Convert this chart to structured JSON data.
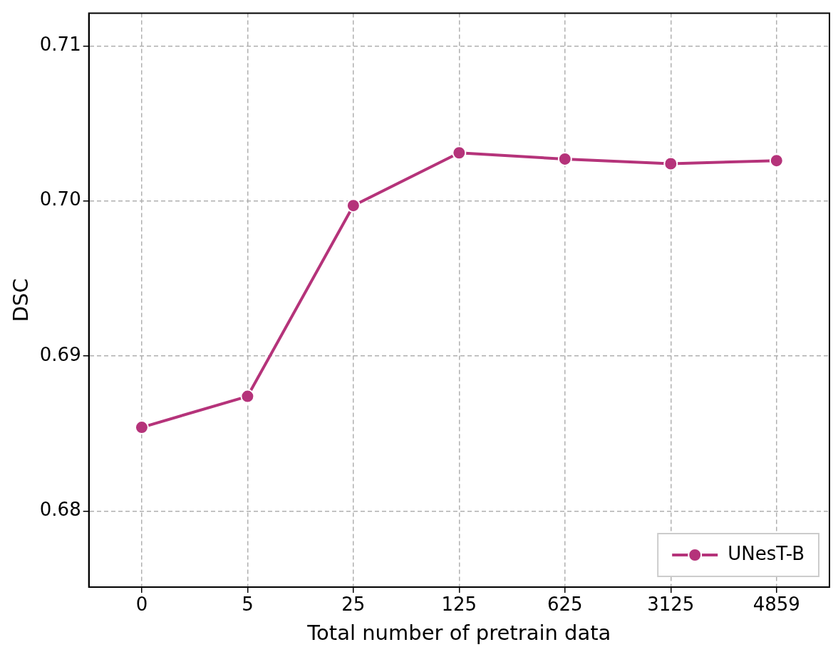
{
  "chart_data": {
    "type": "line",
    "xlabel": "Total number of pretrain data",
    "ylabel": "DSC",
    "categories": [
      "0",
      "5",
      "25",
      "125",
      "625",
      "3125",
      "4859"
    ],
    "series": [
      {
        "name": "UNesT-B",
        "color": "#b5337a",
        "values": [
          0.6854,
          0.6874,
          0.6997,
          0.7031,
          0.7027,
          0.7024,
          0.7026
        ]
      }
    ],
    "ylim": [
      0.6751,
      0.7121
    ],
    "yticks": [
      {
        "value": 0.68,
        "label": "0.68"
      },
      {
        "value": 0.69,
        "label": "0.69"
      },
      {
        "value": 0.7,
        "label": "0.70"
      },
      {
        "value": 0.71,
        "label": "0.71"
      }
    ],
    "grid": true,
    "legend": "bottom right",
    "marker": "circle",
    "line_style": "solid"
  }
}
